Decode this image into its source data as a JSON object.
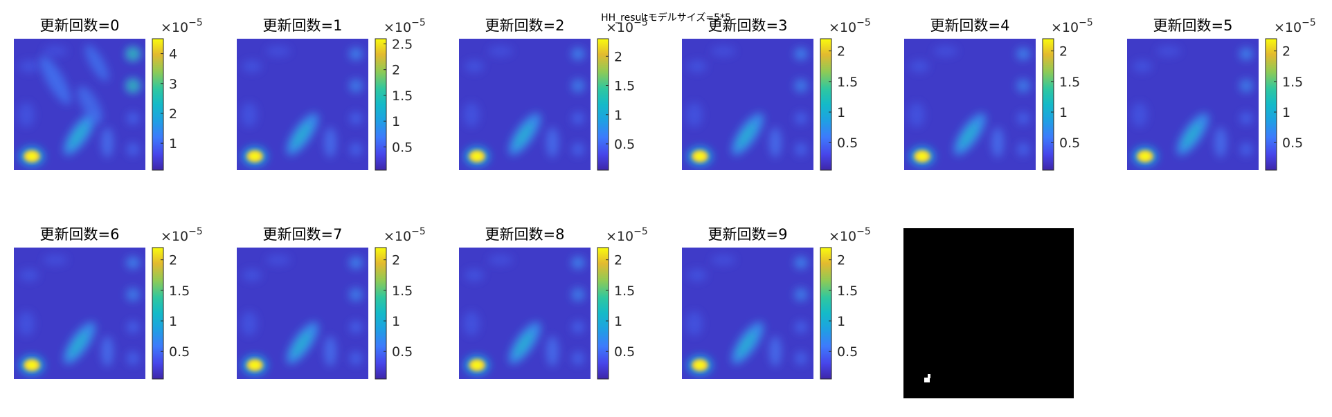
{
  "figure_title": "HH_resultモデルサイズ=5*5",
  "colorbar_exponent_base": "×10",
  "colorbar_exponent_power": "−5",
  "colors": {
    "parula_low": "#3E26A8",
    "parula_mid": "#22B8AE",
    "parula_high": "#F9FB0E",
    "mask_background": "#000000",
    "mask_foreground": "#FFFFFF"
  },
  "chart_data": [
    {
      "type": "heatmap",
      "title": "更新回数=0",
      "colorbar_ticks": [
        "1",
        "2",
        "3",
        "4"
      ],
      "color_range": [
        0.1,
        4.5
      ]
    },
    {
      "type": "heatmap",
      "title": "更新回数=1",
      "colorbar_ticks": [
        "0.5",
        "1",
        "1.5",
        "2",
        "2.5"
      ],
      "color_range": [
        0.05,
        2.6
      ]
    },
    {
      "type": "heatmap",
      "title": "更新回数=2",
      "colorbar_ticks": [
        "0.5",
        "1",
        "1.5",
        "2"
      ],
      "color_range": [
        0.05,
        2.3
      ]
    },
    {
      "type": "heatmap",
      "title": "更新回数=3",
      "colorbar_ticks": [
        "0.5",
        "1",
        "1.5",
        "2"
      ],
      "color_range": [
        0.05,
        2.2
      ]
    },
    {
      "type": "heatmap",
      "title": "更新回数=4",
      "colorbar_ticks": [
        "0.5",
        "1",
        "1.5",
        "2"
      ],
      "color_range": [
        0.05,
        2.2
      ]
    },
    {
      "type": "heatmap",
      "title": "更新回数=5",
      "colorbar_ticks": [
        "0.5",
        "1",
        "1.5",
        "2"
      ],
      "color_range": [
        0.05,
        2.2
      ]
    },
    {
      "type": "heatmap",
      "title": "更新回数=6",
      "colorbar_ticks": [
        "0.5",
        "1",
        "1.5",
        "2"
      ],
      "color_range": [
        0.05,
        2.2
      ]
    },
    {
      "type": "heatmap",
      "title": "更新回数=7",
      "colorbar_ticks": [
        "0.5",
        "1",
        "1.5",
        "2"
      ],
      "color_range": [
        0.05,
        2.2
      ]
    },
    {
      "type": "heatmap",
      "title": "更新回数=8",
      "colorbar_ticks": [
        "0.5",
        "1",
        "1.5",
        "2"
      ],
      "color_range": [
        0.05,
        2.2
      ]
    },
    {
      "type": "heatmap",
      "title": "更新回数=9",
      "colorbar_ticks": [
        "0.5",
        "1",
        "1.5",
        "2"
      ],
      "color_range": [
        0.05,
        2.2
      ]
    }
  ],
  "mask_panel": {
    "type": "binary-mask",
    "title": ""
  }
}
